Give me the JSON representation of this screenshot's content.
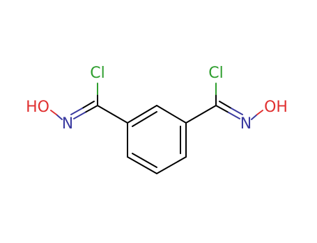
{
  "atoms": [
    {
      "label": "Cl"
    },
    {
      "label": "Cl"
    },
    {
      "label": "HO"
    },
    {
      "label": "N"
    },
    {
      "label": "N"
    },
    {
      "label": "OH"
    }
  ]
}
